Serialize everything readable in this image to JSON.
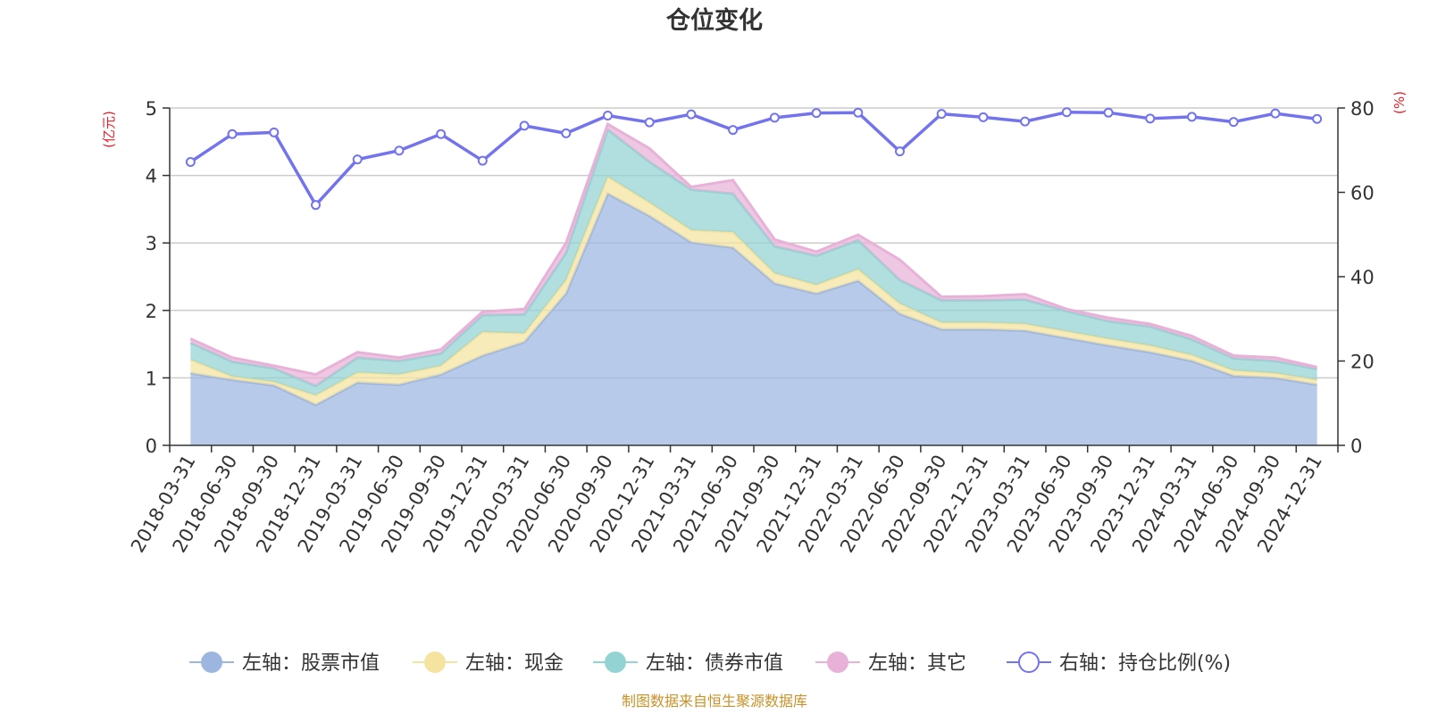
{
  "colors": {
    "stock": "#9db6e0",
    "cash": "#f5e3a0",
    "bond": "#93d3d3",
    "other": "#e8b2d8",
    "ratio": "#7373ee",
    "unit": "#e8202a",
    "source": "#c8922a"
  },
  "chart_data": {
    "type": "area",
    "title": "仓位变化",
    "y_left_label": "(亿元)",
    "y_right_label": "(%)",
    "y_left_range": [
      0,
      5
    ],
    "y_left_ticks": [
      "0",
      "1",
      "2",
      "3",
      "4",
      "5"
    ],
    "y_right_range": [
      0,
      80
    ],
    "y_right_ticks": [
      "0",
      "20",
      "40",
      "60",
      "80"
    ],
    "categories": [
      "2018-03-31",
      "2018-06-30",
      "2018-09-30",
      "2018-12-31",
      "2019-03-31",
      "2019-06-30",
      "2019-09-30",
      "2019-12-31",
      "2020-03-31",
      "2020-06-30",
      "2020-09-30",
      "2020-12-31",
      "2021-03-31",
      "2021-06-30",
      "2021-09-30",
      "2021-12-31",
      "2022-03-31",
      "2022-06-30",
      "2022-09-30",
      "2022-12-31",
      "2023-03-31",
      "2023-06-30",
      "2023-09-30",
      "2023-12-31",
      "2024-03-31",
      "2024-06-30",
      "2024-09-30",
      "2024-12-31"
    ],
    "series": [
      {
        "name": "左轴：股票市值",
        "axis": "left",
        "kind": "area",
        "values": [
          1.07,
          0.97,
          0.89,
          0.6,
          0.93,
          0.9,
          1.05,
          1.33,
          1.53,
          2.25,
          3.73,
          3.4,
          3.01,
          2.93,
          2.4,
          2.25,
          2.44,
          1.95,
          1.72,
          1.72,
          1.7,
          1.59,
          1.48,
          1.38,
          1.25,
          1.03,
          1.0,
          0.9
        ]
      },
      {
        "name": "左轴：现金",
        "axis": "left",
        "kind": "area",
        "values": [
          0.2,
          0.05,
          0.05,
          0.14,
          0.15,
          0.15,
          0.13,
          0.35,
          0.13,
          0.2,
          0.25,
          0.2,
          0.18,
          0.23,
          0.15,
          0.13,
          0.17,
          0.15,
          0.1,
          0.1,
          0.1,
          0.1,
          0.1,
          0.1,
          0.09,
          0.08,
          0.07,
          0.07
        ]
      },
      {
        "name": "左轴：债券市值",
        "axis": "left",
        "kind": "area",
        "values": [
          0.25,
          0.22,
          0.2,
          0.14,
          0.22,
          0.2,
          0.18,
          0.25,
          0.28,
          0.4,
          0.7,
          0.6,
          0.6,
          0.57,
          0.4,
          0.43,
          0.43,
          0.35,
          0.33,
          0.33,
          0.36,
          0.3,
          0.26,
          0.28,
          0.23,
          0.18,
          0.18,
          0.16
        ]
      },
      {
        "name": "左轴：其它",
        "axis": "left",
        "kind": "area",
        "values": [
          0.06,
          0.06,
          0.04,
          0.17,
          0.08,
          0.05,
          0.06,
          0.05,
          0.08,
          0.15,
          0.08,
          0.2,
          0.04,
          0.2,
          0.1,
          0.06,
          0.08,
          0.3,
          0.05,
          0.06,
          0.08,
          0.03,
          0.05,
          0.04,
          0.05,
          0.04,
          0.05,
          0.03
        ]
      },
      {
        "name": "右轴：持仓比例(%)",
        "axis": "right",
        "kind": "line",
        "values": [
          67.2,
          73.8,
          74.2,
          57.0,
          67.8,
          69.9,
          73.8,
          67.5,
          75.8,
          74.0,
          78.2,
          76.6,
          78.5,
          74.8,
          77.7,
          78.8,
          78.9,
          69.7,
          78.6,
          77.8,
          76.8,
          79.0,
          78.9,
          77.5,
          77.9,
          76.7,
          78.7,
          77.4
        ]
      }
    ],
    "legend": [
      {
        "label": "左轴：股票市值",
        "type": "dot",
        "color_key": "stock"
      },
      {
        "label": "左轴：现金",
        "type": "dot",
        "color_key": "cash"
      },
      {
        "label": "左轴：债券市值",
        "type": "dot",
        "color_key": "bond"
      },
      {
        "label": "左轴：其它",
        "type": "dot",
        "color_key": "other"
      },
      {
        "label": "右轴：持仓比例(%)",
        "type": "ring",
        "color_key": "ratio"
      }
    ],
    "legend_position": "bottom",
    "grid": true
  },
  "source": "制图数据来自恒生聚源数据库"
}
